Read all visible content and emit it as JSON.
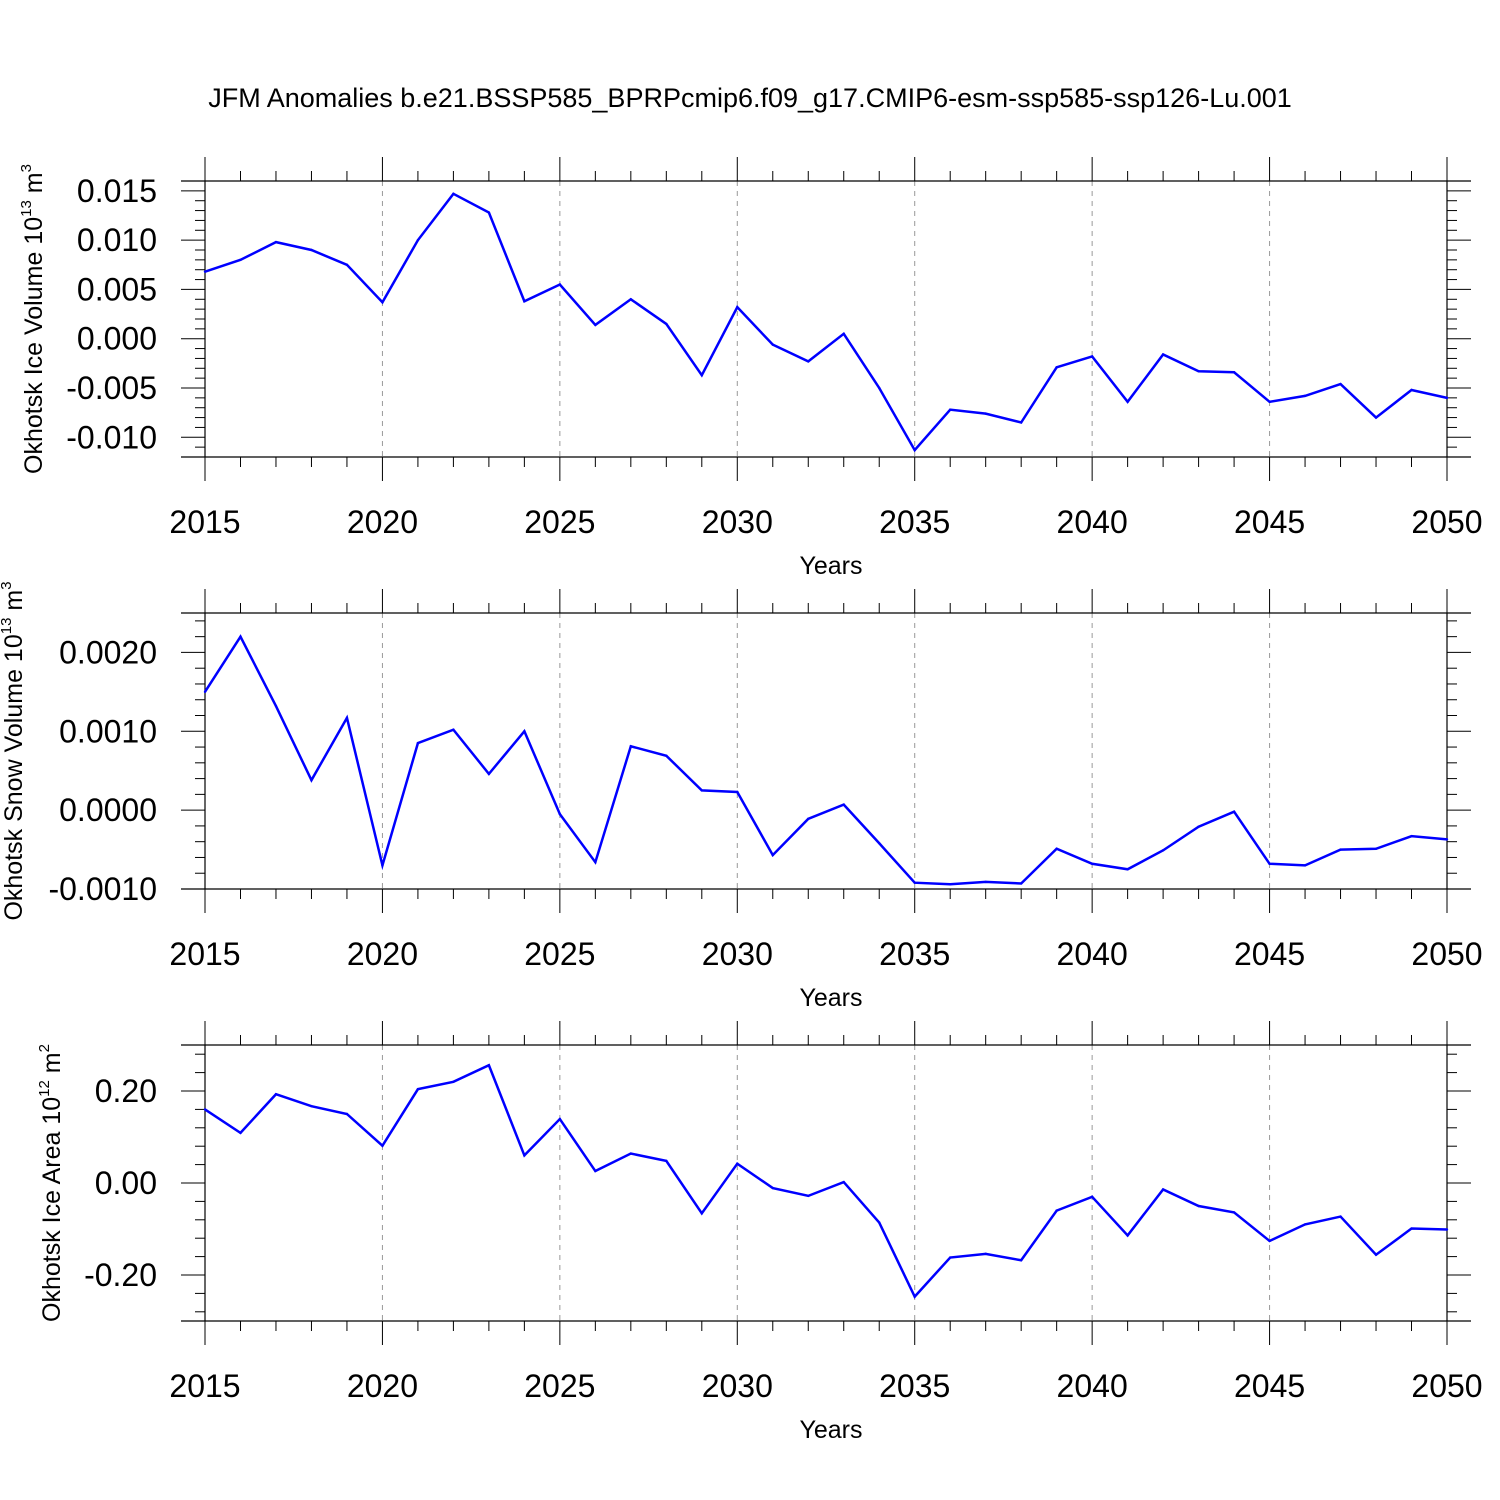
{
  "title": "JFM Anomalies b.e21.BSSP585_BPRPcmip6.f09_g17.CMIP6-esm-ssp585-ssp126-Lu.001",
  "colors": {
    "line": "#0000ff",
    "axis": "#000000",
    "grid": "#999999"
  },
  "chart_data": [
    {
      "type": "line",
      "ylabel": {
        "text": "Okhotsk Ice Volume 10",
        "exp": "13",
        "unit": " m",
        "unit_exp": "3"
      },
      "xlabel": "Years",
      "xlim": [
        2015,
        2050
      ],
      "ylim": [
        -0.012,
        0.016
      ],
      "yticks": [
        -0.01,
        -0.005,
        0.0,
        0.005,
        0.01,
        0.015
      ],
      "ytick_labels": [
        "-0.010",
        "-0.005",
        "0.000",
        "0.005",
        "0.010",
        "0.015"
      ],
      "xticks": [
        2015,
        2020,
        2025,
        2030,
        2035,
        2040,
        2045,
        2050
      ],
      "xtick_labels": [
        "2015",
        "2020",
        "2025",
        "2030",
        "2035",
        "2040",
        "2045",
        "2050"
      ],
      "x": [
        2015,
        2016,
        2017,
        2018,
        2019,
        2020,
        2021,
        2022,
        2023,
        2024,
        2025,
        2026,
        2027,
        2028,
        2029,
        2030,
        2031,
        2032,
        2033,
        2034,
        2035,
        2036,
        2037,
        2038,
        2039,
        2040,
        2041,
        2042,
        2043,
        2044,
        2045,
        2046,
        2047,
        2048,
        2049,
        2050
      ],
      "series": [
        {
          "name": "Ice Volume",
          "values": [
            0.0068,
            0.008,
            0.0098,
            0.009,
            0.0075,
            0.0037,
            0.01,
            0.0147,
            0.0128,
            0.0038,
            0.0055,
            0.0014,
            0.004,
            0.0015,
            -0.0037,
            0.0032,
            -0.0006,
            -0.0023,
            0.0005,
            -0.005,
            -0.0113,
            -0.0072,
            -0.0076,
            -0.0085,
            -0.0029,
            -0.0018,
            -0.0064,
            -0.0016,
            -0.0033,
            -0.0034,
            -0.0064,
            -0.0058,
            -0.0046,
            -0.008,
            -0.0052,
            -0.006
          ]
        }
      ]
    },
    {
      "type": "line",
      "ylabel": {
        "text": "Okhotsk Snow Volume 10",
        "exp": "13",
        "unit": " m",
        "unit_exp": "3"
      },
      "xlabel": "Years",
      "xlim": [
        2015,
        2050
      ],
      "ylim": [
        -0.001,
        0.0025
      ],
      "yticks": [
        -0.001,
        0.0,
        0.001,
        0.002
      ],
      "ytick_labels": [
        "-0.0010",
        "0.0000",
        "0.0010",
        "0.0020"
      ],
      "xticks": [
        2015,
        2020,
        2025,
        2030,
        2035,
        2040,
        2045,
        2050
      ],
      "xtick_labels": [
        "2015",
        "2020",
        "2025",
        "2030",
        "2035",
        "2040",
        "2045",
        "2050"
      ],
      "x": [
        2015,
        2016,
        2017,
        2018,
        2019,
        2020,
        2021,
        2022,
        2023,
        2024,
        2025,
        2026,
        2027,
        2028,
        2029,
        2030,
        2031,
        2032,
        2033,
        2034,
        2035,
        2036,
        2037,
        2038,
        2039,
        2040,
        2041,
        2042,
        2043,
        2044,
        2045,
        2046,
        2047,
        2048,
        2049,
        2050
      ],
      "series": [
        {
          "name": "Snow Volume",
          "values": [
            0.0015,
            0.0022,
            0.00132,
            0.00038,
            0.00117,
            -0.0007,
            0.00085,
            0.00102,
            0.00046,
            0.001,
            -5e-05,
            -0.00066,
            0.00081,
            0.00069,
            0.00025,
            0.00023,
            -0.00057,
            -0.00011,
            7e-05,
            -0.00042,
            -0.00092,
            -0.00094,
            -0.00091,
            -0.00093,
            -0.00049,
            -0.00068,
            -0.00075,
            -0.00051,
            -0.00021,
            -2e-05,
            -0.00068,
            -0.0007,
            -0.0005,
            -0.00049,
            -0.00033,
            -0.00037
          ]
        }
      ]
    },
    {
      "type": "line",
      "ylabel": {
        "text": "Okhotsk Ice Area 10",
        "exp": "12",
        "unit": " m",
        "unit_exp": "2"
      },
      "xlabel": "Years",
      "xlim": [
        2015,
        2050
      ],
      "ylim": [
        -0.3,
        0.3
      ],
      "yticks": [
        -0.2,
        0.0,
        0.2
      ],
      "ytick_labels": [
        "-0.20",
        "0.00",
        "0.20"
      ],
      "xticks": [
        2015,
        2020,
        2025,
        2030,
        2035,
        2040,
        2045,
        2050
      ],
      "xtick_labels": [
        "2015",
        "2020",
        "2025",
        "2030",
        "2035",
        "2040",
        "2045",
        "2050"
      ],
      "x": [
        2015,
        2016,
        2017,
        2018,
        2019,
        2020,
        2021,
        2022,
        2023,
        2024,
        2025,
        2026,
        2027,
        2028,
        2029,
        2030,
        2031,
        2032,
        2033,
        2034,
        2035,
        2036,
        2037,
        2038,
        2039,
        2040,
        2041,
        2042,
        2043,
        2044,
        2045,
        2046,
        2047,
        2048,
        2049,
        2050
      ],
      "series": [
        {
          "name": "Ice Area",
          "values": [
            0.16,
            0.109,
            0.193,
            0.167,
            0.15,
            0.081,
            0.204,
            0.22,
            0.256,
            0.06,
            0.139,
            0.026,
            0.064,
            0.048,
            -0.066,
            0.042,
            -0.011,
            -0.028,
            0.002,
            -0.086,
            -0.247,
            -0.162,
            -0.154,
            -0.168,
            -0.06,
            -0.03,
            -0.114,
            -0.014,
            -0.05,
            -0.064,
            -0.126,
            -0.09,
            -0.073,
            -0.156,
            -0.099,
            -0.101
          ]
        }
      ]
    }
  ]
}
